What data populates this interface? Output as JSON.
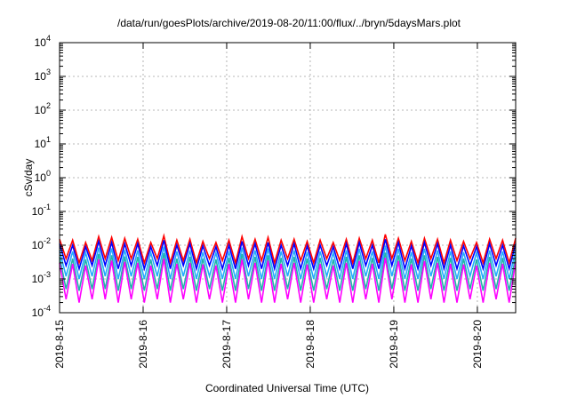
{
  "chart_data": {
    "type": "line",
    "title": "/data/run/goesPlots/archive/2019-08-20/11:00/flux/../bryn/5daysMars.plot",
    "xlabel": "Coordinated Universal Time (UTC)",
    "ylabel": "cSv/day",
    "yscale": "log",
    "ylim": [
      0.0001,
      10000
    ],
    "xlim": [
      "2019-08-15T00:00",
      "2019-08-20T11:00"
    ],
    "grid": true,
    "y_ticks": [
      {
        "value": 0.0001,
        "base": "10",
        "exp": "-4"
      },
      {
        "value": 0.001,
        "base": "10",
        "exp": "-3"
      },
      {
        "value": 0.01,
        "base": "10",
        "exp": "-2"
      },
      {
        "value": 0.1,
        "base": "10",
        "exp": "-1"
      },
      {
        "value": 1,
        "base": "10",
        "exp": "0"
      },
      {
        "value": 10,
        "base": "10",
        "exp": "1"
      },
      {
        "value": 100,
        "base": "10",
        "exp": "2"
      },
      {
        "value": 1000,
        "base": "10",
        "exp": "3"
      },
      {
        "value": 10000,
        "base": "10",
        "exp": "4"
      }
    ],
    "x_ticks": [
      {
        "value": "2019-08-15",
        "label": "2019-8-15"
      },
      {
        "value": "2019-08-16",
        "label": "2019-8-16"
      },
      {
        "value": "2019-08-17",
        "label": "2019-8-17"
      },
      {
        "value": "2019-08-18",
        "label": "2019-8-18"
      },
      {
        "value": "2019-08-19",
        "label": "2019-8-19"
      },
      {
        "value": "2019-08-20",
        "label": "2019-8-20"
      }
    ],
    "series": [
      {
        "color": "#ff0000",
        "values": [
          0.015,
          0.004,
          0.014,
          0.003,
          0.012,
          0.0035,
          0.018,
          0.004,
          0.017,
          0.0035,
          0.016,
          0.004,
          0.015,
          0.003,
          0.012,
          0.004,
          0.019,
          0.003,
          0.014,
          0.0035,
          0.015,
          0.003,
          0.013,
          0.004,
          0.012,
          0.0035,
          0.014,
          0.003,
          0.018,
          0.004,
          0.015,
          0.0035,
          0.017,
          0.003,
          0.014,
          0.004,
          0.015,
          0.0035,
          0.013,
          0.003,
          0.014,
          0.004,
          0.012,
          0.0035,
          0.015,
          0.003,
          0.016,
          0.004,
          0.014,
          0.003,
          0.021,
          0.004,
          0.016,
          0.0035,
          0.013,
          0.003,
          0.016,
          0.004,
          0.015,
          0.003,
          0.014,
          0.0035,
          0.013,
          0.004,
          0.012,
          0.003,
          0.015,
          0.004,
          0.014,
          0.003,
          0.016
        ]
      },
      {
        "color": "#0000ff",
        "values": [
          0.011,
          0.0025,
          0.01,
          0.002,
          0.009,
          0.0025,
          0.013,
          0.0025,
          0.012,
          0.002,
          0.011,
          0.0025,
          0.011,
          0.002,
          0.009,
          0.0025,
          0.014,
          0.002,
          0.01,
          0.0025,
          0.011,
          0.002,
          0.0095,
          0.0025,
          0.009,
          0.002,
          0.01,
          0.002,
          0.013,
          0.0025,
          0.011,
          0.002,
          0.012,
          0.002,
          0.01,
          0.0025,
          0.011,
          0.002,
          0.0095,
          0.002,
          0.01,
          0.0025,
          0.009,
          0.002,
          0.011,
          0.002,
          0.012,
          0.0025,
          0.01,
          0.002,
          0.015,
          0.0025,
          0.012,
          0.002,
          0.0095,
          0.002,
          0.012,
          0.0025,
          0.011,
          0.002,
          0.01,
          0.002,
          0.0095,
          0.0025,
          0.009,
          0.002,
          0.011,
          0.0025,
          0.01,
          0.002,
          0.011
        ]
      },
      {
        "color": "#22aaff",
        "values": [
          0.007,
          0.0012,
          0.0065,
          0.001,
          0.006,
          0.0012,
          0.0085,
          0.0012,
          0.008,
          0.001,
          0.0072,
          0.0012,
          0.007,
          0.001,
          0.006,
          0.0012,
          0.009,
          0.001,
          0.0065,
          0.0012,
          0.007,
          0.001,
          0.0062,
          0.0012,
          0.006,
          0.001,
          0.0065,
          0.001,
          0.0085,
          0.0012,
          0.007,
          0.001,
          0.008,
          0.001,
          0.0065,
          0.0012,
          0.007,
          0.001,
          0.0062,
          0.001,
          0.0065,
          0.0012,
          0.006,
          0.001,
          0.007,
          0.001,
          0.0078,
          0.0012,
          0.0065,
          0.001,
          0.0095,
          0.0012,
          0.0078,
          0.001,
          0.0062,
          0.001,
          0.0078,
          0.0012,
          0.007,
          0.001,
          0.0065,
          0.001,
          0.0062,
          0.0012,
          0.006,
          0.001,
          0.007,
          0.0012,
          0.0065,
          0.001,
          0.0072
        ]
      },
      {
        "color": "#20b2aa",
        "values": [
          0.0045,
          0.0005,
          0.004,
          0.00045,
          0.0038,
          0.0005,
          0.0055,
          0.0005,
          0.005,
          0.00045,
          0.0046,
          0.0005,
          0.0045,
          0.00045,
          0.0038,
          0.0005,
          0.0058,
          0.00045,
          0.004,
          0.0005,
          0.0045,
          0.00045,
          0.004,
          0.0005,
          0.0038,
          0.00045,
          0.0042,
          0.00045,
          0.0055,
          0.0005,
          0.0045,
          0.00045,
          0.005,
          0.00045,
          0.0042,
          0.0005,
          0.0045,
          0.00045,
          0.004,
          0.00045,
          0.0042,
          0.0005,
          0.0038,
          0.00045,
          0.0045,
          0.00045,
          0.005,
          0.0005,
          0.0042,
          0.00045,
          0.006,
          0.0005,
          0.005,
          0.00045,
          0.004,
          0.00045,
          0.005,
          0.0005,
          0.0045,
          0.00045,
          0.0042,
          0.00045,
          0.004,
          0.0005,
          0.0038,
          0.00045,
          0.0045,
          0.0005,
          0.0042,
          0.00045,
          0.0046
        ]
      },
      {
        "color": "#ff00ff",
        "values": [
          0.003,
          0.00025,
          0.0028,
          0.0002,
          0.0025,
          0.00025,
          0.0038,
          0.00025,
          0.0035,
          0.0002,
          0.0032,
          0.00025,
          0.003,
          0.0002,
          0.0025,
          0.00025,
          0.004,
          0.0002,
          0.0028,
          0.00025,
          0.003,
          0.0002,
          0.0027,
          0.00025,
          0.0025,
          0.0002,
          0.0028,
          0.0002,
          0.0038,
          0.00025,
          0.003,
          0.0002,
          0.0035,
          0.0002,
          0.0028,
          0.00025,
          0.003,
          0.0002,
          0.0027,
          0.0002,
          0.0028,
          0.00025,
          0.0025,
          0.0002,
          0.003,
          0.0002,
          0.0034,
          0.00025,
          0.0028,
          0.0002,
          0.0042,
          0.00025,
          0.0034,
          0.0002,
          0.0027,
          0.0002,
          0.0034,
          0.00025,
          0.003,
          0.0002,
          0.0028,
          0.0002,
          0.0027,
          0.00025,
          0.0025,
          0.0002,
          0.003,
          0.00025,
          0.0028,
          0.0002,
          0.0032
        ]
      }
    ]
  }
}
